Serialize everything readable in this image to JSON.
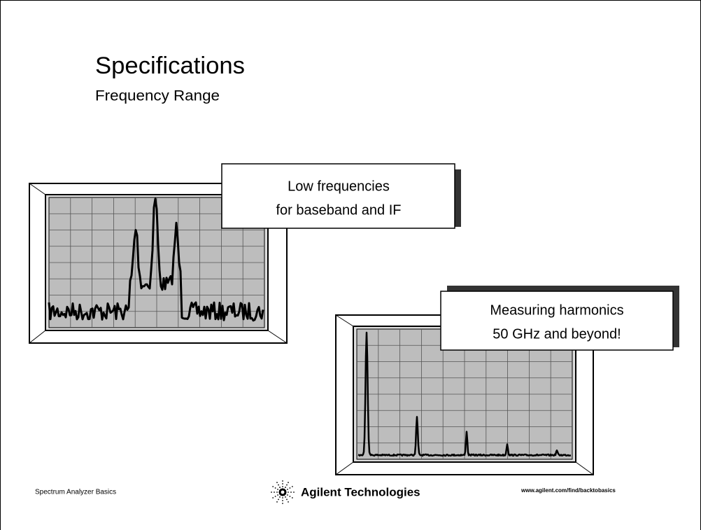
{
  "slide": {
    "title": "Specifications",
    "subtitle": "Frequency Range",
    "callouts": [
      {
        "lines": [
          "Low frequencies",
          "for baseband and IF"
        ]
      },
      {
        "lines": [
          "Measuring harmonics",
          "50 GHz and beyond!"
        ]
      }
    ],
    "footer": {
      "left": "Spectrum Analyzer Basics",
      "logo": "Agilent Technologies",
      "url": "www.agilent.com/find/backtobasics"
    }
  }
}
